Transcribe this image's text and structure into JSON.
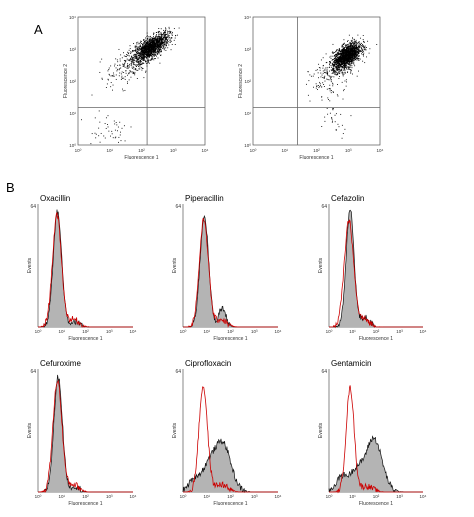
{
  "panel_labels": {
    "a": "A",
    "b": "B"
  },
  "chart_data": [
    {
      "type": "scatter",
      "panel": "A",
      "xlabel": "Fluorescence 1",
      "ylabel": "Fluorescence 2",
      "xscale": "log",
      "yscale": "log",
      "xlim": [
        1,
        10000
      ],
      "ylim": [
        1,
        10000
      ],
      "xticklabels": [
        "10⁰",
        "10¹",
        "10²",
        "10³",
        "10⁴"
      ],
      "yticklabels": [
        "10⁰",
        "10¹",
        "10²",
        "10³",
        "10⁴"
      ],
      "gates": {
        "x": 150,
        "y": 15
      },
      "clusters": [
        {
          "center": [
            200,
            1100
          ],
          "spread": [
            0.28,
            0.16
          ],
          "count": 1500,
          "tilt": 0.55
        },
        {
          "center": [
            40,
            300
          ],
          "spread": [
            0.35,
            0.3
          ],
          "count": 200,
          "tilt": 0.4
        },
        {
          "center": [
            8,
            3
          ],
          "spread": [
            0.45,
            0.35
          ],
          "count": 50,
          "tilt": 0
        }
      ]
    },
    {
      "type": "scatter",
      "panel": "A",
      "xlabel": "Fluorescence 1",
      "ylabel": "Fluorescence 2",
      "xscale": "log",
      "yscale": "log",
      "xlim": [
        1,
        10000
      ],
      "ylim": [
        1,
        10000
      ],
      "xticklabels": [
        "10⁰",
        "10¹",
        "10²",
        "10³",
        "10⁴"
      ],
      "yticklabels": [
        "10⁰",
        "10¹",
        "10²",
        "10³",
        "10⁴"
      ],
      "gates": {
        "x": 25,
        "y": 15
      },
      "clusters": [
        {
          "center": [
            900,
            600
          ],
          "spread": [
            0.22,
            0.17
          ],
          "count": 1700,
          "tilt": 0.55
        },
        {
          "center": [
            300,
            150
          ],
          "spread": [
            0.35,
            0.3
          ],
          "count": 180,
          "tilt": 0.4
        },
        {
          "center": [
            400,
            8
          ],
          "spread": [
            0.25,
            0.3
          ],
          "count": 30,
          "tilt": 0
        }
      ]
    },
    {
      "type": "area",
      "panel": "B",
      "title": "Oxacillin",
      "xlabel": "Fluorescence 1",
      "ylabel": "Events",
      "xscale": "log",
      "xlim": [
        1,
        10000
      ],
      "ylim": [
        0,
        64
      ],
      "y_top_tick": "64",
      "xticklabels": [
        "10⁰",
        "10¹",
        "10²",
        "10³",
        "10⁴"
      ],
      "series": [
        {
          "color": "#999999",
          "components": [
            {
              "mu": 0.82,
              "sigma": 0.18,
              "amp": 60
            },
            {
              "mu": 1.55,
              "sigma": 0.18,
              "amp": 3
            }
          ]
        },
        {
          "color": "#cc0000",
          "components": [
            {
              "mu": 0.8,
              "sigma": 0.19,
              "amp": 58
            },
            {
              "mu": 1.5,
              "sigma": 0.22,
              "amp": 4
            }
          ]
        }
      ]
    },
    {
      "type": "area",
      "panel": "B",
      "title": "Piperacillin",
      "xlabel": "Fluorescence 1",
      "ylabel": "Events",
      "xscale": "log",
      "xlim": [
        1,
        10000
      ],
      "ylim": [
        0,
        64
      ],
      "y_top_tick": "64",
      "xticklabels": [
        "10⁰",
        "10¹",
        "10²",
        "10³",
        "10⁴"
      ],
      "series": [
        {
          "color": "#999999",
          "components": [
            {
              "mu": 0.9,
              "sigma": 0.18,
              "amp": 58
            },
            {
              "mu": 1.65,
              "sigma": 0.15,
              "amp": 10
            }
          ]
        },
        {
          "color": "#cc0000",
          "components": [
            {
              "mu": 0.88,
              "sigma": 0.19,
              "amp": 56
            },
            {
              "mu": 1.6,
              "sigma": 0.22,
              "amp": 4
            }
          ]
        }
      ]
    },
    {
      "type": "area",
      "panel": "B",
      "title": "Cefazolin",
      "xlabel": "Fluorescence 1",
      "ylabel": "Events",
      "xscale": "log",
      "xlim": [
        1,
        10000
      ],
      "ylim": [
        0,
        64
      ],
      "y_top_tick": "64",
      "xticklabels": [
        "10⁰",
        "10¹",
        "10²",
        "10³",
        "10⁴"
      ],
      "series": [
        {
          "color": "#999999",
          "components": [
            {
              "mu": 0.9,
              "sigma": 0.17,
              "amp": 61
            },
            {
              "mu": 1.55,
              "sigma": 0.18,
              "amp": 5
            }
          ]
        },
        {
          "color": "#cc0000",
          "components": [
            {
              "mu": 0.85,
              "sigma": 0.2,
              "amp": 55
            },
            {
              "mu": 1.5,
              "sigma": 0.22,
              "amp": 4
            }
          ]
        }
      ]
    },
    {
      "type": "area",
      "panel": "B",
      "title": "Cefuroxime",
      "xlabel": "Fluorescence 1",
      "ylabel": "Events",
      "xscale": "log",
      "xlim": [
        1,
        10000
      ],
      "ylim": [
        0,
        64
      ],
      "y_top_tick": "64",
      "xticklabels": [
        "10⁰",
        "10¹",
        "10²",
        "10³",
        "10⁴"
      ],
      "series": [
        {
          "color": "#999999",
          "components": [
            {
              "mu": 0.85,
              "sigma": 0.18,
              "amp": 60
            },
            {
              "mu": 1.55,
              "sigma": 0.18,
              "amp": 3
            }
          ]
        },
        {
          "color": "#cc0000",
          "components": [
            {
              "mu": 0.82,
              "sigma": 0.19,
              "amp": 58
            },
            {
              "mu": 1.5,
              "sigma": 0.22,
              "amp": 4
            }
          ]
        }
      ]
    },
    {
      "type": "area",
      "panel": "B",
      "title": "Ciprofloxacin",
      "xlabel": "Fluorescence 1",
      "ylabel": "Events",
      "xscale": "log",
      "xlim": [
        1,
        10000
      ],
      "ylim": [
        0,
        64
      ],
      "y_top_tick": "64",
      "xticklabels": [
        "10⁰",
        "10¹",
        "10²",
        "10³",
        "10⁴"
      ],
      "series": [
        {
          "color": "#999999",
          "components": [
            {
              "mu": 1.65,
              "sigma": 0.35,
              "amp": 26
            },
            {
              "mu": 1.05,
              "sigma": 0.25,
              "amp": 10
            },
            {
              "mu": 0.5,
              "sigma": 0.25,
              "amp": 7
            }
          ]
        },
        {
          "color": "#cc0000",
          "components": [
            {
              "mu": 0.85,
              "sigma": 0.18,
              "amp": 55
            },
            {
              "mu": 1.6,
              "sigma": 0.25,
              "amp": 4
            }
          ]
        }
      ]
    },
    {
      "type": "area",
      "panel": "B",
      "title": "Gentamicin",
      "xlabel": "Fluorescence 1",
      "ylabel": "Events",
      "xscale": "log",
      "xlim": [
        1,
        10000
      ],
      "ylim": [
        0,
        64
      ],
      "y_top_tick": "64",
      "xticklabels": [
        "10⁰",
        "10¹",
        "10²",
        "10³",
        "10⁴"
      ],
      "series": [
        {
          "color": "#999999",
          "components": [
            {
              "mu": 1.9,
              "sigma": 0.35,
              "amp": 28
            },
            {
              "mu": 1.15,
              "sigma": 0.25,
              "amp": 10
            },
            {
              "mu": 0.55,
              "sigma": 0.25,
              "amp": 8
            }
          ]
        },
        {
          "color": "#cc0000",
          "components": [
            {
              "mu": 0.9,
              "sigma": 0.17,
              "amp": 54
            },
            {
              "mu": 1.6,
              "sigma": 0.25,
              "amp": 3
            }
          ]
        }
      ]
    }
  ]
}
